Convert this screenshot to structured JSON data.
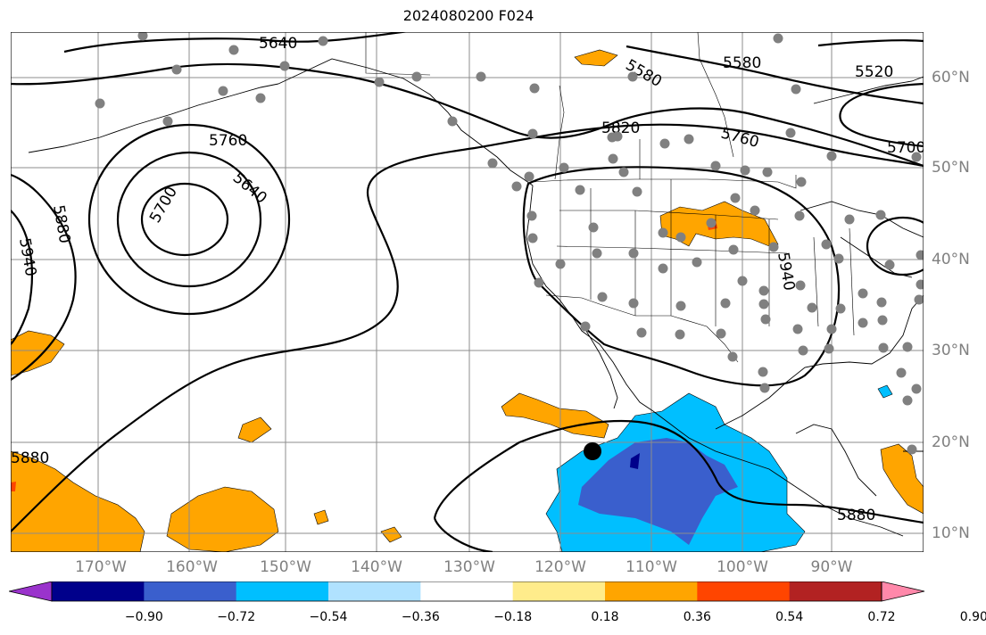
{
  "title": "2024080200 F024",
  "colors": {
    "contour": "#000000",
    "grid": "#8c8c8c",
    "coast": "#000000",
    "station": "#808080",
    "storm_center": "#000000"
  },
  "lon_labels": [
    "170°W",
    "160°W",
    "150°W",
    "140°W",
    "130°W",
    "120°W",
    "110°W",
    "100°W",
    "90°W"
  ],
  "lat_labels": [
    "60°N",
    "50°N",
    "40°N",
    "30°N",
    "20°N",
    "10°N"
  ],
  "contour_labels": [
    "5640",
    "5580",
    "5520",
    "5820",
    "5760",
    "5760",
    "5700",
    "5700",
    "5640",
    "5880",
    "5940",
    "5940",
    "5880",
    "5880",
    "5580"
  ],
  "colorbar": {
    "ticks": [
      "−0.90",
      "−0.72",
      "−0.54",
      "−0.36",
      "−0.18",
      "0.18",
      "0.36",
      "0.54",
      "0.72",
      "0.90"
    ],
    "colors": [
      "#9a33cc",
      "#00008b",
      "#3a5fcd",
      "#00bfff",
      "#b0e2ff",
      "#ffffff",
      "#ffec8b",
      "#ffa500",
      "#ff4500",
      "#b22222",
      "#ff88aa"
    ]
  }
}
